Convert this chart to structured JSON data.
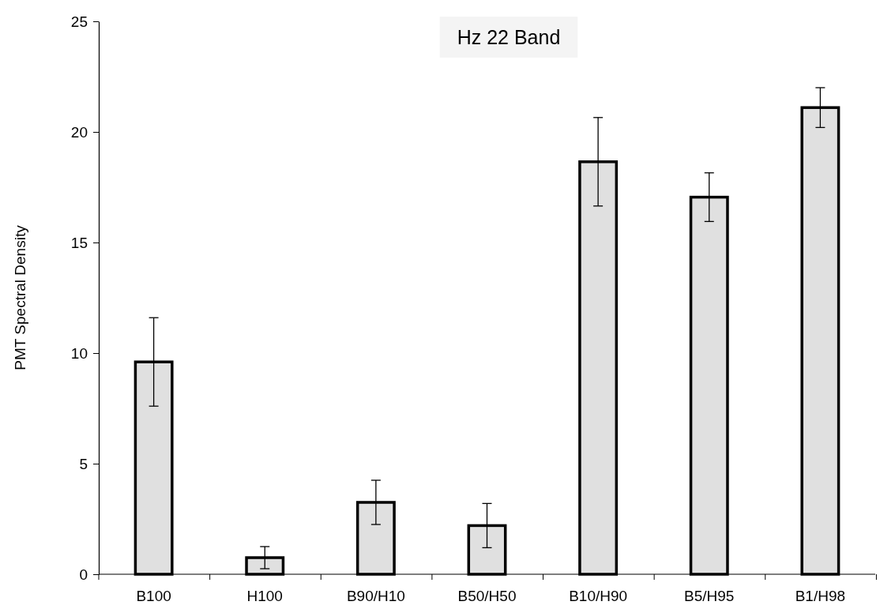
{
  "chart_data": {
    "type": "bar",
    "title": "Hz 22 Band",
    "ylabel": "PMT Spectral Density",
    "categories": [
      "B100",
      "H100",
      "B90/H10",
      "B50/H50",
      "B10/H90",
      "B5/H95",
      "B1/H98"
    ],
    "values": [
      9.6,
      0.75,
      3.25,
      2.2,
      18.65,
      17.05,
      21.1
    ],
    "errors": [
      2.0,
      0.5,
      1.0,
      1.0,
      2.0,
      1.1,
      0.9
    ],
    "color": "#e0e0e0",
    "ylim": [
      0,
      25
    ],
    "yticks": [
      0,
      5,
      10,
      15,
      20,
      25
    ]
  }
}
